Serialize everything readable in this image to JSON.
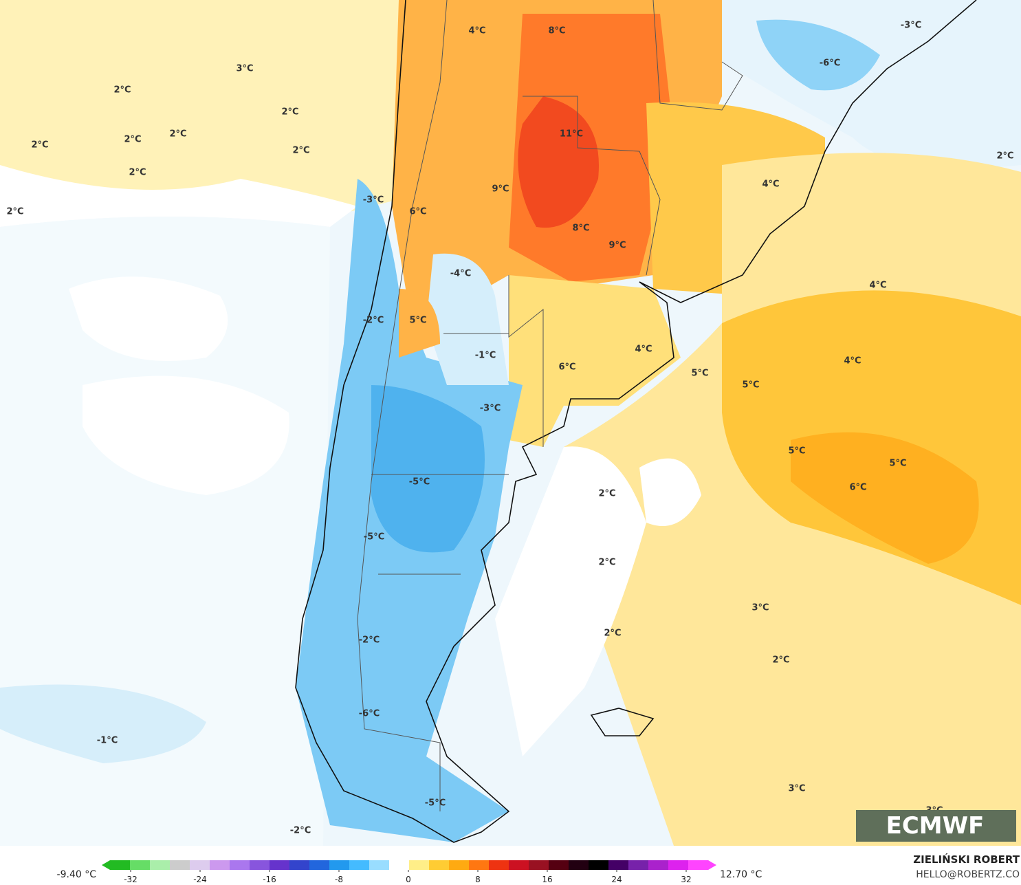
{
  "map": {
    "labels": [
      "8°C",
      "4°C",
      "-3°C",
      "-6°C",
      "3°C",
      "2°C",
      "2°C",
      "2°C",
      "2°C",
      "2°C",
      "2°C",
      "11°C",
      "2°C",
      "2°C",
      "4°C",
      "-3°C",
      "9°C",
      "2°C",
      "6°C",
      "8°C",
      "9°C",
      "-4°C",
      "4°C",
      "-2°C",
      "5°C",
      "-1°C",
      "4°C",
      "4°C",
      "6°C",
      "5°C",
      "5°C",
      "-3°C",
      "5°C",
      "5°C",
      "-5°C",
      "6°C",
      "2°C",
      "-5°C",
      "2°C",
      "3°C",
      "2°C",
      "-2°C",
      "2°C",
      "-6°C",
      "-1°C",
      "3°C",
      "3°C",
      "-5°C",
      "-2°C"
    ]
  },
  "logo": "ECMWF",
  "colorbar": {
    "min_label": "-9.40 °C",
    "max_label": "12.70 °C",
    "ticks": [
      -32,
      -24,
      -16,
      -8,
      0,
      8,
      16,
      24,
      32
    ],
    "colors": [
      "#22bb22",
      "#66dd66",
      "#aaeeaa",
      "#cccccc",
      "#ddccee",
      "#cc99ee",
      "#aa77ee",
      "#8855dd",
      "#6633cc",
      "#3344cc",
      "#2266dd",
      "#2299ee",
      "#44bbff",
      "#99ddff",
      "#ffffff",
      "#ffee88",
      "#ffcc33",
      "#ffaa11",
      "#ff7711",
      "#ee3311",
      "#cc1122",
      "#991122",
      "#550011",
      "#220011",
      "#000000",
      "#440066",
      "#7722aa",
      "#aa22cc",
      "#dd22ee",
      "#ff44ff"
    ]
  },
  "credit": {
    "author": "ZIELIŃSKI ROBERT",
    "email": "HELLO@ROBERTZ.CO"
  }
}
